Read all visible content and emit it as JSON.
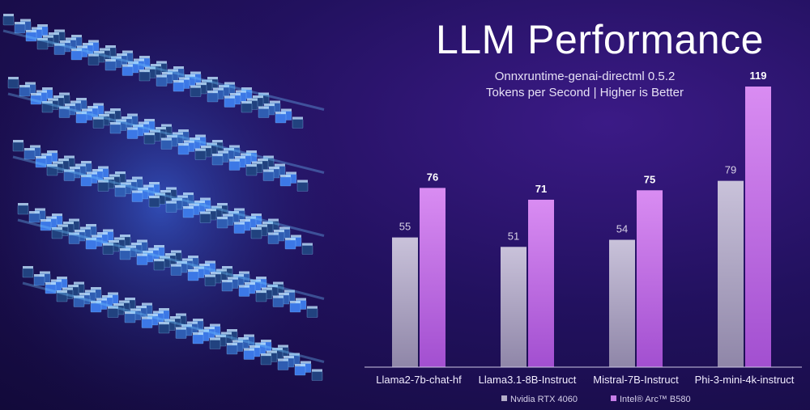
{
  "title": "LLM Performance",
  "subtitle_line1": "Onnxruntime-genai-directml 0.5.2",
  "subtitle_line2": "Tokens per Second | Higher is Better",
  "colors": {
    "nvidia_bar": "#b5aec9",
    "intel_bar": "#c77ee8",
    "background": "#22115f",
    "cube_glow": "#4aa3ff"
  },
  "chart_data": {
    "type": "bar",
    "categories": [
      "Llama2-7b-chat-hf",
      "Llama3.1-8B-Instruct",
      "Mistral-7B-Instruct",
      "Phi-3-mini-4k-instruct"
    ],
    "series": [
      {
        "name": "Nvidia RTX 4060",
        "values": [
          55,
          51,
          54,
          79
        ]
      },
      {
        "name": "Intel® Arc™ B580",
        "values": [
          76,
          71,
          75,
          119
        ]
      }
    ],
    "title": "LLM Performance",
    "subtitle": "Onnxruntime-genai-directml 0.5.2 — Tokens per Second | Higher is Better",
    "xlabel": "",
    "ylabel": "",
    "ylim": [
      0,
      119
    ],
    "grid": false,
    "legend": "bottom"
  }
}
